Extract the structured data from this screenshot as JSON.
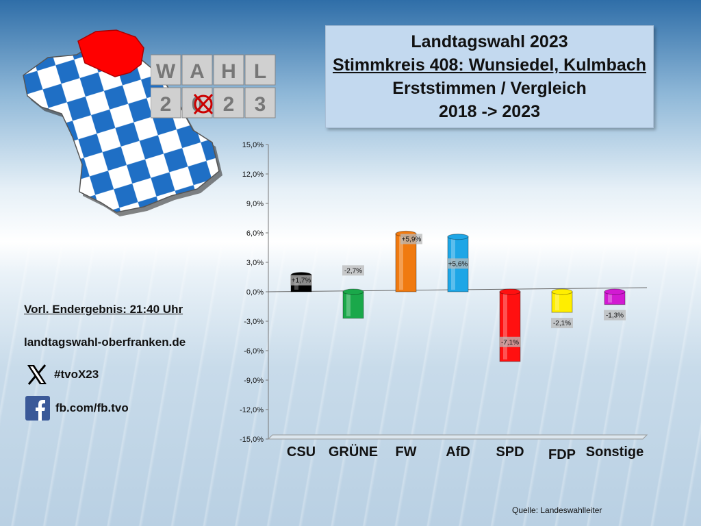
{
  "title": {
    "line1": "Landtagswahl 2023",
    "line2": "Stimmkreis 408: Wunsiedel, Kulmbach",
    "line3": "Erststimmen / Vergleich",
    "line4": "2018 -> 2023"
  },
  "logo": {
    "row1": [
      "W",
      "A",
      "H",
      "L"
    ],
    "row2": [
      "2",
      "0",
      "2",
      "3"
    ]
  },
  "info": {
    "result_time": "Vorl. Endergebnis: 21:40 Uhr",
    "website": "landtagswahl-oberfranken.de"
  },
  "social": {
    "x_handle": "#tvoX23",
    "facebook": "fb.com/fb.tvo"
  },
  "source": "Quelle:  Landeswahlleiter",
  "colors": {
    "bavaria_blue": "#1f6fc5",
    "region_red": "#ff0000"
  },
  "chart_data": {
    "type": "bar",
    "categories": [
      "CSU",
      "GRÜNE",
      "FW",
      "AfD",
      "SPD",
      "FDP",
      "Sonstige"
    ],
    "values": [
      1.7,
      -2.7,
      5.9,
      5.6,
      -7.1,
      -2.1,
      -1.3
    ],
    "data_labels": [
      "+1,7%",
      "-2,7%",
      "+5,9%",
      "+5,6%",
      "-7,1%",
      "-2,1%",
      "-1,3%"
    ],
    "colors": [
      "#000000",
      "#1aa84a",
      "#f07a10",
      "#1ea6e6",
      "#ff1010",
      "#ffee00",
      "#d21ad2"
    ],
    "ylim": [
      -15,
      15
    ],
    "yticks": [
      15,
      12,
      9,
      6,
      3,
      0,
      -3,
      -6,
      -9,
      -12,
      -15
    ],
    "ytick_labels": [
      "15,0%",
      "12,0%",
      "9,0%",
      "6,0%",
      "3,0%",
      "0,0%",
      "-3,0%",
      "-6,0%",
      "-9,0%",
      "-12,0%",
      "-15,0%"
    ],
    "grid": false,
    "legend": "none"
  }
}
